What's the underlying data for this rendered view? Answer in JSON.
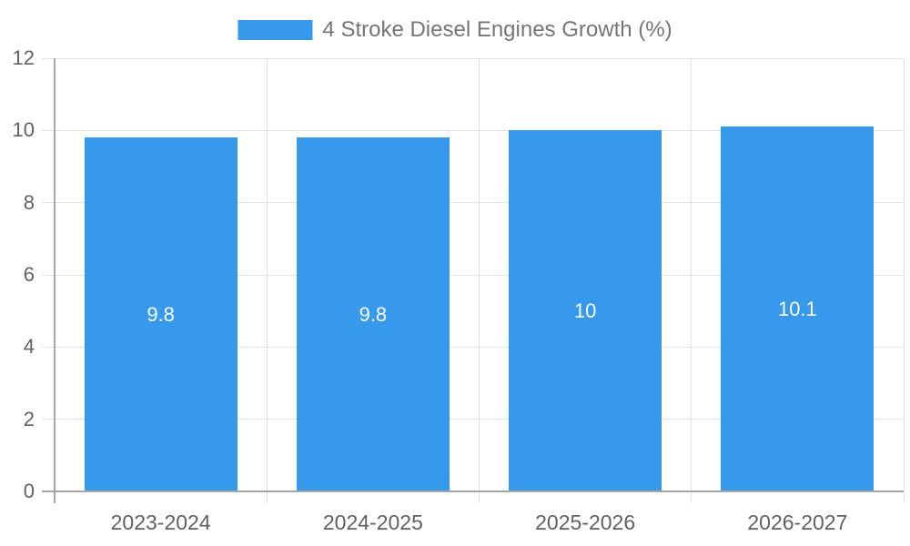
{
  "chart_data": {
    "type": "bar",
    "title": "4 Stroke Diesel Engines Growth (%)",
    "series_name": "4 Stroke Diesel Engines Growth (%)",
    "categories": [
      "2023-2024",
      "2024-2025",
      "2025-2026",
      "2026-2027"
    ],
    "values": [
      9.8,
      9.8,
      10,
      10.1
    ],
    "data_labels": [
      "9.8",
      "9.8",
      "10",
      "10.1"
    ],
    "xlabel": "",
    "ylabel": "",
    "ylim": [
      0,
      12
    ],
    "yticks": [
      0,
      2,
      4,
      6,
      8,
      10,
      12
    ],
    "grid": true,
    "legend_position": "top-center",
    "colors": {
      "bar": "#3799EB",
      "gridline": "#E2E2E2",
      "axis_line": "#A6A6A6",
      "axis_label": "#616161",
      "legend_text": "#757575",
      "data_label": "#FFFFFF",
      "background": "#FFFFFF"
    }
  },
  "legend": {
    "label": "4 Stroke Diesel Engines Growth (%)"
  }
}
